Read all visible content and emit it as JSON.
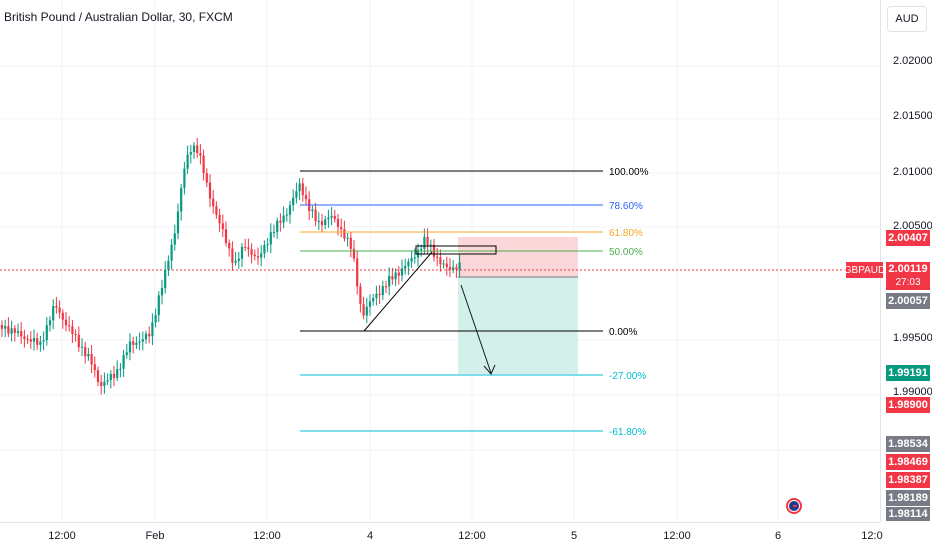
{
  "header": {
    "title": "British Pound / Australian Dollar, 30, FXCM",
    "currency_button": "AUD"
  },
  "price_axis": {
    "ticks": [
      "2.02000",
      "2.01500",
      "2.01000",
      "2.00500",
      "1.99500",
      "1.99000"
    ],
    "labels": {
      "upper": "2.00407",
      "current": "2.00119",
      "countdown": "27:03",
      "prev_close": "2.00057",
      "target": "1.99191",
      "level_1": "1.98900",
      "level_2": "1.98534",
      "level_3": "1.98469",
      "level_4": "1.98387",
      "level_5": "1.98189",
      "level_6": "1.98114"
    }
  },
  "symbol_tag": "GBPAUD",
  "time_axis": {
    "ticks": [
      "12:00",
      "Feb",
      "12:00",
      "4",
      "12:00",
      "5",
      "12:00",
      "6",
      "12:0"
    ]
  },
  "fib_labels": [
    "100.00%",
    "78.60%",
    "61.80%",
    "50.00%",
    "0.00%",
    "-27.00%",
    "-61.80%"
  ],
  "colors": {
    "up": "#089981",
    "down": "#f23645",
    "grid": "#f0f3fa",
    "fib_100": "#000000",
    "fib_786": "#2962ff",
    "fib_618": "#f5a623",
    "fib_50": "#4caf50",
    "fib_0": "#000000",
    "fib_ext": "#00bcd4",
    "stop_zone": "#fbd0d3",
    "target_zone": "#cfeee8",
    "label_dark": "#787b86",
    "label_green": "#089981",
    "label_red": "#f23645"
  }
}
